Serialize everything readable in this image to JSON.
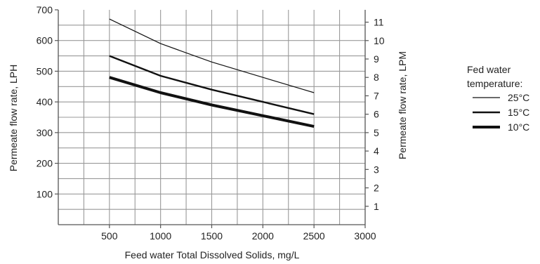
{
  "chart_data": {
    "type": "line",
    "xlabel": "Feed water Total Dissolved Solids, mg/L",
    "ylabel_left": "Permeate flow rate, LPH",
    "ylabel_right": "Permeate flow rate, LPM",
    "xlim": [
      0,
      3000
    ],
    "ylim_left": [
      0,
      700
    ],
    "ylim_right": [
      0,
      11.67
    ],
    "x_ticks": [
      "500",
      "1000",
      "1500",
      "2000",
      "2500",
      "3000"
    ],
    "y_ticks_left": [
      "100",
      "200",
      "300",
      "400",
      "500",
      "600",
      "700"
    ],
    "y_ticks_right": [
      "1",
      "2",
      "3",
      "4",
      "5",
      "6",
      "7",
      "8",
      "9",
      "10",
      "11"
    ],
    "grid": true,
    "legend_title": "Fed water temperature:",
    "legend_position": "right",
    "series": [
      {
        "name": "25°C",
        "x": [
          500,
          1000,
          1500,
          2000,
          2500
        ],
        "y": [
          670,
          590,
          530,
          480,
          430
        ],
        "line_weight": "thin"
      },
      {
        "name": "15°C",
        "x": [
          500,
          1000,
          1500,
          2000,
          2500
        ],
        "y": [
          550,
          485,
          440,
          400,
          360
        ],
        "line_weight": "medium"
      },
      {
        "name": "10°C",
        "x": [
          500,
          1000,
          1500,
          2000,
          2500
        ],
        "y": [
          480,
          430,
          390,
          355,
          320
        ],
        "line_weight": "thick"
      }
    ]
  },
  "legend": {
    "title_line1": "Fed water",
    "title_line2": "temperature:"
  }
}
